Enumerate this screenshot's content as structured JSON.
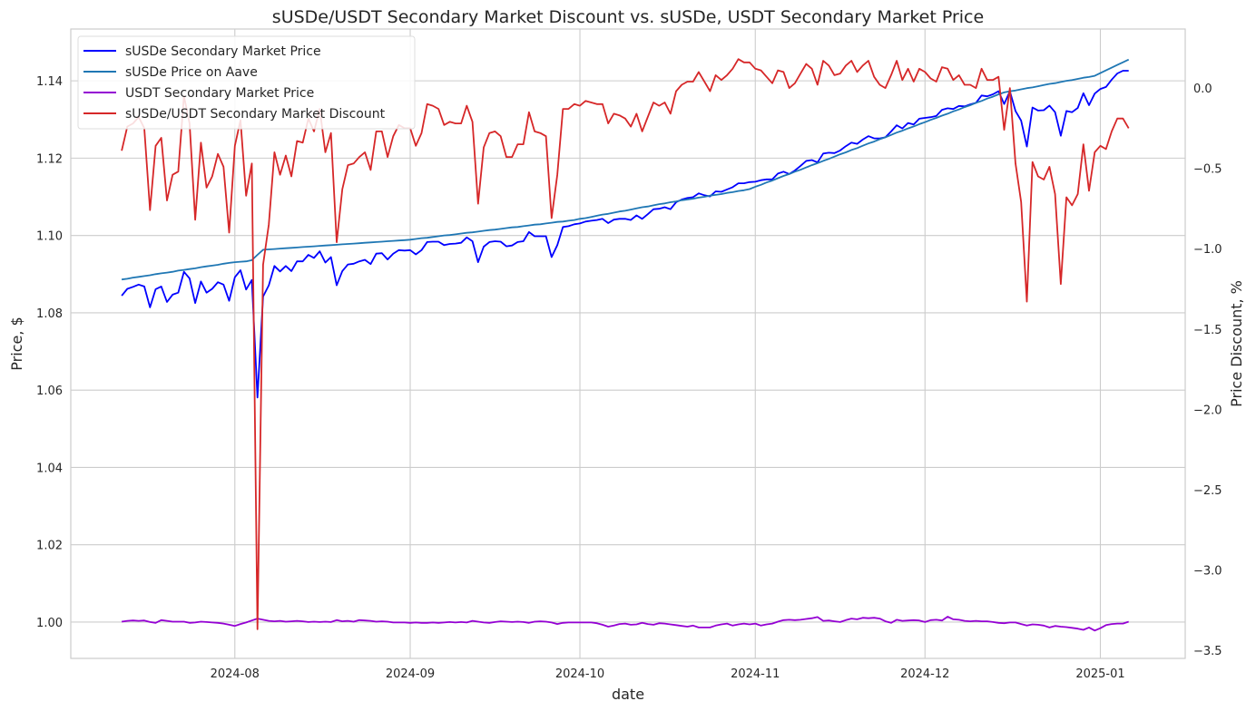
{
  "chart_data": {
    "type": "line",
    "title": "sUSDe/USDT Secondary Market Discount vs. sUSDe, USDT Secondary Market Price",
    "xlabel": "date",
    "ylabel": "Price, $",
    "y2label": "Price Discount, %",
    "x_start": "2024-07-12",
    "x_frequency": "daily",
    "xlim": [
      "2024-07-03",
      "2025-01-16"
    ],
    "ylim": [
      0.9906,
      1.1534
    ],
    "y2lim": [
      -3.551,
      0.3675
    ],
    "xticks": [
      "2024-08",
      "2024-09",
      "2024-10",
      "2024-11",
      "2024-12",
      "2025-01"
    ],
    "yticks": [
      1.0,
      1.02,
      1.04,
      1.06,
      1.08,
      1.1,
      1.12,
      1.14
    ],
    "ytick_labels": [
      "1.00",
      "1.02",
      "1.04",
      "1.06",
      "1.08",
      "1.10",
      "1.12",
      "1.14"
    ],
    "y2ticks": [
      0.0,
      -0.5,
      -1.0,
      -1.5,
      -2.0,
      -2.5,
      -3.0,
      -3.5
    ],
    "y2tick_labels": [
      "0.0",
      "−0.5",
      "−1.0",
      "−1.5",
      "−2.0",
      "−2.5",
      "−3.0",
      "−3.5"
    ],
    "grid": true,
    "legend_position": "top-left",
    "series": [
      {
        "name": "sUSDe Secondary Market Price",
        "axis": "left",
        "color": "#0000ff",
        "values": [
          1.0844,
          1.0862,
          1.0867,
          1.0873,
          1.0868,
          1.0814,
          1.0861,
          1.0868,
          1.0828,
          1.0847,
          1.0852,
          1.0906,
          1.0889,
          1.0825,
          1.0881,
          1.0852,
          1.0862,
          1.0879,
          1.0873,
          1.0831,
          1.0892,
          1.091,
          1.086,
          1.0885,
          1.0581,
          1.0842,
          1.0871,
          1.0921,
          1.0907,
          1.0921,
          1.0908,
          1.0933,
          1.0933,
          1.095,
          1.0942,
          1.0959,
          1.093,
          1.0944,
          1.0871,
          1.0908,
          1.0925,
          1.0927,
          1.0933,
          1.0937,
          1.0926,
          1.0953,
          1.0954,
          1.0938,
          1.0953,
          1.0962,
          1.0961,
          1.0962,
          1.0951,
          1.0962,
          1.0983,
          1.0984,
          1.0984,
          1.0975,
          1.0978,
          1.0979,
          1.0981,
          1.0995,
          1.0985,
          1.0931,
          1.0971,
          1.0983,
          1.0985,
          1.0984,
          1.0972,
          1.0974,
          1.0983,
          1.0985,
          1.1009,
          1.0998,
          1.0998,
          1.0998,
          1.0944,
          1.0975,
          1.1022,
          1.1024,
          1.1029,
          1.1031,
          1.1036,
          1.1038,
          1.104,
          1.1043,
          1.1032,
          1.1041,
          1.1043,
          1.1043,
          1.104,
          1.1052,
          1.1043,
          1.1055,
          1.1068,
          1.1069,
          1.1073,
          1.1068,
          1.1086,
          1.1093,
          1.1097,
          1.1099,
          1.1109,
          1.1104,
          1.1101,
          1.1114,
          1.1113,
          1.1119,
          1.1125,
          1.1135,
          1.1135,
          1.1138,
          1.1139,
          1.1143,
          1.1145,
          1.1145,
          1.116,
          1.1165,
          1.1159,
          1.1168,
          1.118,
          1.1193,
          1.1195,
          1.1189,
          1.1212,
          1.1214,
          1.1213,
          1.122,
          1.1231,
          1.124,
          1.1237,
          1.1248,
          1.1257,
          1.1251,
          1.1251,
          1.1254,
          1.1269,
          1.1285,
          1.1277,
          1.1291,
          1.1287,
          1.1302,
          1.1304,
          1.1306,
          1.1309,
          1.1325,
          1.1329,
          1.1327,
          1.1335,
          1.1334,
          1.1339,
          1.1343,
          1.1362,
          1.136,
          1.1365,
          1.1373,
          1.134,
          1.1373,
          1.1322,
          1.1297,
          1.123,
          1.1331,
          1.1323,
          1.1324,
          1.1336,
          1.1319,
          1.1258,
          1.1322,
          1.1319,
          1.133,
          1.1368,
          1.1337,
          1.1367,
          1.1379,
          1.1384,
          1.1403,
          1.1419,
          1.1426,
          1.1426
        ]
      },
      {
        "name": "sUSDe Price on Aave",
        "axis": "left",
        "color": "#1f77b4",
        "values": [
          1.0886,
          1.0888,
          1.0891,
          1.0893,
          1.0895,
          1.0897,
          1.09,
          1.0902,
          1.0904,
          1.0906,
          1.0909,
          1.0911,
          1.0913,
          1.0915,
          1.0918,
          1.092,
          1.0922,
          1.0924,
          1.0927,
          1.0929,
          1.0931,
          1.0932,
          1.0933,
          1.0936,
          1.095,
          1.0963,
          1.0964,
          1.0965,
          1.0966,
          1.0967,
          1.0968,
          1.0969,
          1.097,
          1.0971,
          1.0972,
          1.0973,
          1.0974,
          1.0975,
          1.0976,
          1.0977,
          1.0978,
          1.0979,
          1.098,
          1.0981,
          1.0982,
          1.0983,
          1.0984,
          1.0985,
          1.0986,
          1.0987,
          1.0988,
          1.0989,
          1.0991,
          1.0993,
          1.0994,
          1.0996,
          1.0998,
          1.1,
          1.1001,
          1.1003,
          1.1005,
          1.1007,
          1.1008,
          1.101,
          1.1012,
          1.1014,
          1.1015,
          1.1017,
          1.1019,
          1.1021,
          1.1022,
          1.1024,
          1.1026,
          1.1028,
          1.1029,
          1.1031,
          1.1033,
          1.1035,
          1.1036,
          1.1038,
          1.104,
          1.1043,
          1.1045,
          1.1048,
          1.1051,
          1.1054,
          1.1056,
          1.1059,
          1.1062,
          1.1064,
          1.1067,
          1.107,
          1.1073,
          1.1075,
          1.1078,
          1.1081,
          1.1083,
          1.1086,
          1.1088,
          1.1091,
          1.1093,
          1.1095,
          1.1098,
          1.11,
          1.1103,
          1.1105,
          1.1107,
          1.111,
          1.1112,
          1.1115,
          1.1117,
          1.112,
          1.1126,
          1.1131,
          1.1137,
          1.1142,
          1.1148,
          1.1154,
          1.1159,
          1.1165,
          1.117,
          1.1176,
          1.1182,
          1.1187,
          1.1193,
          1.1198,
          1.1204,
          1.121,
          1.1215,
          1.1221,
          1.1226,
          1.1232,
          1.1238,
          1.1243,
          1.1249,
          1.1254,
          1.126,
          1.1266,
          1.1271,
          1.1277,
          1.1282,
          1.1288,
          1.1293,
          1.1299,
          1.1304,
          1.131,
          1.1315,
          1.1321,
          1.1326,
          1.1332,
          1.1337,
          1.1343,
          1.1348,
          1.1354,
          1.1359,
          1.1365,
          1.137,
          1.1373,
          1.1375,
          1.1378,
          1.1381,
          1.1383,
          1.1386,
          1.1389,
          1.1392,
          1.1394,
          1.1397,
          1.14,
          1.1402,
          1.1405,
          1.1408,
          1.141,
          1.1413,
          1.142,
          1.1427,
          1.1434,
          1.1441,
          1.1448,
          1.1455
        ]
      },
      {
        "name": "USDT Secondary Market Price",
        "axis": "left",
        "color": "#9400d3",
        "values": [
          1.0001,
          1.0003,
          1.0004,
          1.0003,
          1.0004,
          1.0,
          0.9998,
          1.0005,
          1.0003,
          1.0001,
          1.0001,
          1.0001,
          0.9998,
          0.9999,
          1.0001,
          1.0,
          0.9999,
          0.9998,
          0.9996,
          0.9993,
          0.999,
          0.9995,
          0.9999,
          1.0004,
          1.0009,
          1.0006,
          1.0003,
          1.0002,
          1.0003,
          1.0001,
          1.0002,
          1.0003,
          1.0002,
          1.0,
          1.0001,
          1.0,
          1.0001,
          1.0,
          1.0005,
          1.0002,
          1.0003,
          1.0001,
          1.0005,
          1.0004,
          1.0003,
          1.0001,
          1.0002,
          1.0001,
          0.9999,
          0.9999,
          0.9999,
          0.9998,
          0.9999,
          0.9998,
          0.9998,
          0.9999,
          0.9998,
          0.9999,
          1.0,
          0.9999,
          1.0,
          0.9999,
          1.0003,
          1.0001,
          0.9999,
          0.9998,
          1.0,
          1.0002,
          1.0001,
          1.0,
          1.0001,
          1.0,
          0.9998,
          1.0001,
          1.0002,
          1.0001,
          0.9999,
          0.9995,
          0.9998,
          0.9999,
          0.9999,
          0.9999,
          0.9999,
          0.9999,
          0.9997,
          0.9993,
          0.9988,
          0.9991,
          0.9995,
          0.9996,
          0.9993,
          0.9994,
          0.9998,
          0.9995,
          0.9993,
          0.9997,
          0.9996,
          0.9994,
          0.9992,
          0.999,
          0.9988,
          0.9991,
          0.9986,
          0.9986,
          0.9986,
          0.9991,
          0.9994,
          0.9996,
          0.9991,
          0.9994,
          0.9996,
          0.9994,
          0.9996,
          0.9991,
          0.9994,
          0.9996,
          1.0001,
          1.0005,
          1.0006,
          1.0005,
          1.0006,
          1.0008,
          1.001,
          1.0013,
          1.0003,
          1.0004,
          1.0002,
          1.0,
          1.0005,
          1.0009,
          1.0007,
          1.0011,
          1.001,
          1.0011,
          1.0009,
          1.0002,
          0.9998,
          1.0006,
          1.0003,
          1.0004,
          1.0005,
          1.0004,
          1.0,
          1.0005,
          1.0006,
          1.0004,
          1.0014,
          1.0007,
          1.0006,
          1.0003,
          1.0002,
          1.0003,
          1.0002,
          1.0002,
          1.0,
          0.9998,
          0.9997,
          0.9999,
          0.9999,
          0.9995,
          0.9991,
          0.9994,
          0.9993,
          0.9991,
          0.9986,
          0.999,
          0.9988,
          0.9987,
          0.9985,
          0.9983,
          0.998,
          0.9986,
          0.9978,
          0.9984,
          0.9992,
          0.9995,
          0.9996,
          0.9996,
          1.0001
        ]
      },
      {
        "name": "sUSDe/USDT Secondary Market Discount",
        "axis": "right",
        "color": "#d62728",
        "values": [
          -0.39,
          -0.24,
          -0.22,
          -0.18,
          -0.25,
          -0.76,
          -0.36,
          -0.31,
          -0.7,
          -0.54,
          -0.52,
          -0.05,
          -0.22,
          -0.82,
          -0.34,
          -0.62,
          -0.55,
          -0.41,
          -0.49,
          -0.9,
          -0.36,
          -0.2,
          -0.67,
          -0.47,
          -3.37,
          -1.1,
          -0.85,
          -0.4,
          -0.54,
          -0.42,
          -0.55,
          -0.33,
          -0.34,
          -0.19,
          -0.27,
          -0.13,
          -0.4,
          -0.28,
          -0.96,
          -0.63,
          -0.48,
          -0.47,
          -0.43,
          -0.4,
          -0.51,
          -0.27,
          -0.27,
          -0.43,
          -0.3,
          -0.23,
          -0.25,
          -0.25,
          -0.36,
          -0.28,
          -0.1,
          -0.11,
          -0.13,
          -0.23,
          -0.21,
          -0.22,
          -0.22,
          -0.11,
          -0.21,
          -0.72,
          -0.37,
          -0.28,
          -0.27,
          -0.3,
          -0.43,
          -0.43,
          -0.35,
          -0.35,
          -0.15,
          -0.27,
          -0.28,
          -0.3,
          -0.81,
          -0.54,
          -0.13,
          -0.13,
          -0.1,
          -0.11,
          -0.08,
          -0.09,
          -0.1,
          -0.1,
          -0.22,
          -0.16,
          -0.17,
          -0.19,
          -0.24,
          -0.16,
          -0.27,
          -0.18,
          -0.09,
          -0.11,
          -0.09,
          -0.16,
          -0.02,
          0.02,
          0.04,
          0.04,
          0.1,
          0.04,
          -0.02,
          0.08,
          0.05,
          0.08,
          0.12,
          0.18,
          0.16,
          0.16,
          0.12,
          0.11,
          0.07,
          0.03,
          0.11,
          0.1,
          0.0,
          0.03,
          0.09,
          0.15,
          0.12,
          0.02,
          0.17,
          0.14,
          0.08,
          0.09,
          0.14,
          0.17,
          0.1,
          0.14,
          0.17,
          0.07,
          0.02,
          0.0,
          0.08,
          0.17,
          0.05,
          0.12,
          0.04,
          0.12,
          0.1,
          0.06,
          0.04,
          0.13,
          0.12,
          0.05,
          0.08,
          0.02,
          0.02,
          0.0,
          0.12,
          0.05,
          0.05,
          0.07,
          -0.26,
          0.0,
          -0.47,
          -0.71,
          -1.33,
          -0.46,
          -0.55,
          -0.57,
          -0.49,
          -0.66,
          -1.22,
          -0.68,
          -0.73,
          -0.66,
          -0.35,
          -0.64,
          -0.4,
          -0.36,
          -0.38,
          -0.27,
          -0.19,
          -0.19,
          -0.25
        ]
      }
    ]
  }
}
